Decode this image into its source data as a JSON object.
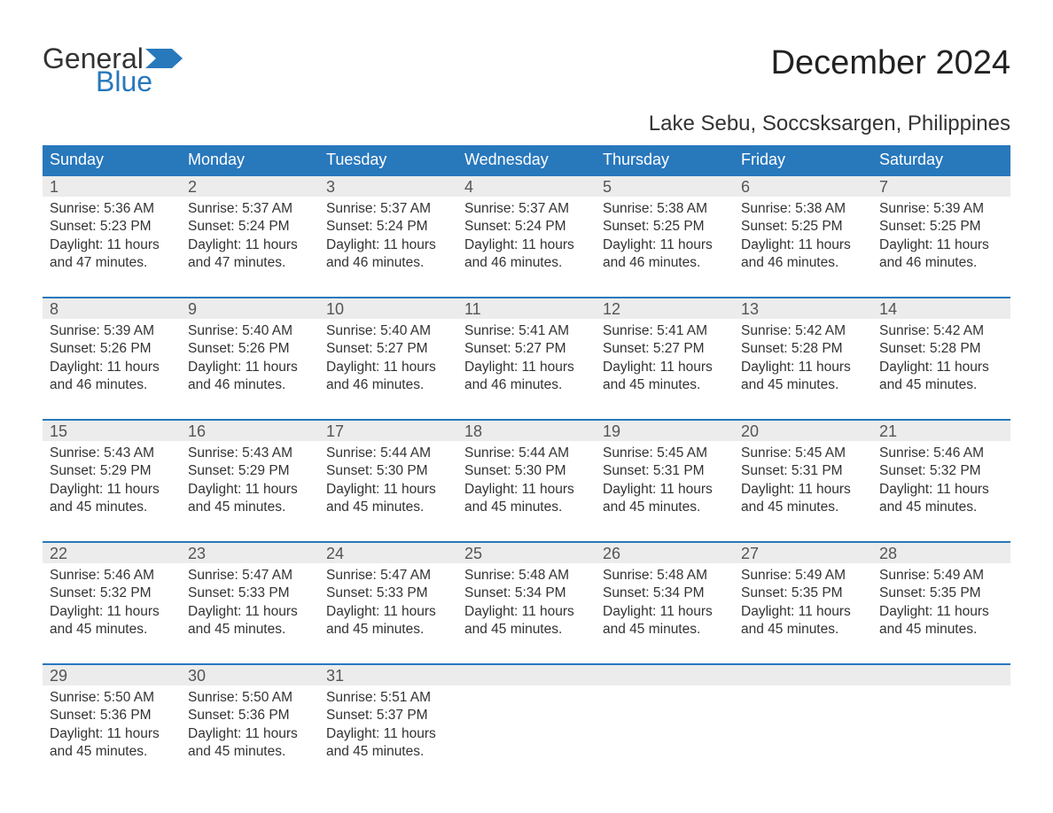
{
  "logo": {
    "text_general": "General",
    "text_blue": "Blue",
    "flag_color": "#2878bc"
  },
  "title": "December 2024",
  "location": "Lake Sebu, Soccsksargen, Philippines",
  "colors": {
    "header_bg": "#2878bc",
    "header_text": "#ffffff",
    "daynum_bg": "#ececec",
    "daynum_border": "#2878bc",
    "body_text": "#333333",
    "page_bg": "#ffffff"
  },
  "day_headers": [
    "Sunday",
    "Monday",
    "Tuesday",
    "Wednesday",
    "Thursday",
    "Friday",
    "Saturday"
  ],
  "labels": {
    "sunrise": "Sunrise: ",
    "sunset": "Sunset: ",
    "daylight": "Daylight: "
  },
  "weeks": [
    [
      {
        "n": "1",
        "sunrise": "5:36 AM",
        "sunset": "5:23 PM",
        "daylight": "11 hours and 47 minutes."
      },
      {
        "n": "2",
        "sunrise": "5:37 AM",
        "sunset": "5:24 PM",
        "daylight": "11 hours and 47 minutes."
      },
      {
        "n": "3",
        "sunrise": "5:37 AM",
        "sunset": "5:24 PM",
        "daylight": "11 hours and 46 minutes."
      },
      {
        "n": "4",
        "sunrise": "5:37 AM",
        "sunset": "5:24 PM",
        "daylight": "11 hours and 46 minutes."
      },
      {
        "n": "5",
        "sunrise": "5:38 AM",
        "sunset": "5:25 PM",
        "daylight": "11 hours and 46 minutes."
      },
      {
        "n": "6",
        "sunrise": "5:38 AM",
        "sunset": "5:25 PM",
        "daylight": "11 hours and 46 minutes."
      },
      {
        "n": "7",
        "sunrise": "5:39 AM",
        "sunset": "5:25 PM",
        "daylight": "11 hours and 46 minutes."
      }
    ],
    [
      {
        "n": "8",
        "sunrise": "5:39 AM",
        "sunset": "5:26 PM",
        "daylight": "11 hours and 46 minutes."
      },
      {
        "n": "9",
        "sunrise": "5:40 AM",
        "sunset": "5:26 PM",
        "daylight": "11 hours and 46 minutes."
      },
      {
        "n": "10",
        "sunrise": "5:40 AM",
        "sunset": "5:27 PM",
        "daylight": "11 hours and 46 minutes."
      },
      {
        "n": "11",
        "sunrise": "5:41 AM",
        "sunset": "5:27 PM",
        "daylight": "11 hours and 46 minutes."
      },
      {
        "n": "12",
        "sunrise": "5:41 AM",
        "sunset": "5:27 PM",
        "daylight": "11 hours and 45 minutes."
      },
      {
        "n": "13",
        "sunrise": "5:42 AM",
        "sunset": "5:28 PM",
        "daylight": "11 hours and 45 minutes."
      },
      {
        "n": "14",
        "sunrise": "5:42 AM",
        "sunset": "5:28 PM",
        "daylight": "11 hours and 45 minutes."
      }
    ],
    [
      {
        "n": "15",
        "sunrise": "5:43 AM",
        "sunset": "5:29 PM",
        "daylight": "11 hours and 45 minutes."
      },
      {
        "n": "16",
        "sunrise": "5:43 AM",
        "sunset": "5:29 PM",
        "daylight": "11 hours and 45 minutes."
      },
      {
        "n": "17",
        "sunrise": "5:44 AM",
        "sunset": "5:30 PM",
        "daylight": "11 hours and 45 minutes."
      },
      {
        "n": "18",
        "sunrise": "5:44 AM",
        "sunset": "5:30 PM",
        "daylight": "11 hours and 45 minutes."
      },
      {
        "n": "19",
        "sunrise": "5:45 AM",
        "sunset": "5:31 PM",
        "daylight": "11 hours and 45 minutes."
      },
      {
        "n": "20",
        "sunrise": "5:45 AM",
        "sunset": "5:31 PM",
        "daylight": "11 hours and 45 minutes."
      },
      {
        "n": "21",
        "sunrise": "5:46 AM",
        "sunset": "5:32 PM",
        "daylight": "11 hours and 45 minutes."
      }
    ],
    [
      {
        "n": "22",
        "sunrise": "5:46 AM",
        "sunset": "5:32 PM",
        "daylight": "11 hours and 45 minutes."
      },
      {
        "n": "23",
        "sunrise": "5:47 AM",
        "sunset": "5:33 PM",
        "daylight": "11 hours and 45 minutes."
      },
      {
        "n": "24",
        "sunrise": "5:47 AM",
        "sunset": "5:33 PM",
        "daylight": "11 hours and 45 minutes."
      },
      {
        "n": "25",
        "sunrise": "5:48 AM",
        "sunset": "5:34 PM",
        "daylight": "11 hours and 45 minutes."
      },
      {
        "n": "26",
        "sunrise": "5:48 AM",
        "sunset": "5:34 PM",
        "daylight": "11 hours and 45 minutes."
      },
      {
        "n": "27",
        "sunrise": "5:49 AM",
        "sunset": "5:35 PM",
        "daylight": "11 hours and 45 minutes."
      },
      {
        "n": "28",
        "sunrise": "5:49 AM",
        "sunset": "5:35 PM",
        "daylight": "11 hours and 45 minutes."
      }
    ],
    [
      {
        "n": "29",
        "sunrise": "5:50 AM",
        "sunset": "5:36 PM",
        "daylight": "11 hours and 45 minutes."
      },
      {
        "n": "30",
        "sunrise": "5:50 AM",
        "sunset": "5:36 PM",
        "daylight": "11 hours and 45 minutes."
      },
      {
        "n": "31",
        "sunrise": "5:51 AM",
        "sunset": "5:37 PM",
        "daylight": "11 hours and 45 minutes."
      },
      null,
      null,
      null,
      null
    ]
  ]
}
